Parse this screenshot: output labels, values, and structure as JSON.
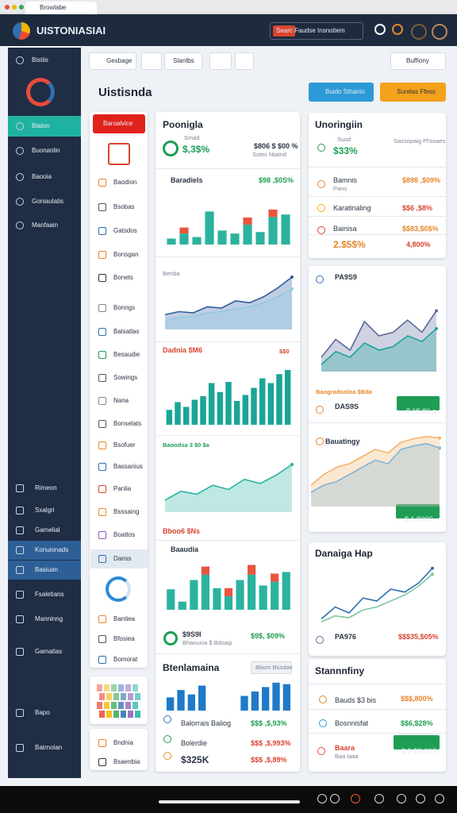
{
  "browser": {
    "tab": "Browlabe"
  },
  "header": {
    "app_name": "UISTONIASIAI",
    "search": "Searc Faudse Insnotiem"
  },
  "sidebar": {
    "top": [
      "Bistiis",
      "Biaton",
      "Buonanlin",
      "Baooia",
      "Goniaulatis",
      "Manfaain"
    ],
    "bottom": [
      "Rimeon",
      "Sxalgri",
      "Gamelial",
      "Konuionads",
      "Basiuan",
      "Fsaletians",
      "Manninng",
      "Gamatias",
      "Bapo",
      "Batrnolan"
    ]
  },
  "toolbar": {
    "buttons": [
      "Gesbage",
      "Stanlbs"
    ],
    "search": "Buffiony"
  },
  "page": {
    "title": "Uistisnda",
    "buttons": [
      "Buido Sthanio",
      "Surelas Ffess"
    ]
  },
  "list": {
    "button": "Baroalvice",
    "items": [
      "Baodion",
      "Bsobas",
      "Gatsdos",
      "Bonsgan",
      "Bonets",
      "Bonngs",
      "Balsatlas",
      "Besaudie",
      "Sowings",
      "Nana",
      "Bonselats",
      "Bsofuer",
      "Bassanius",
      "Panlia",
      "Bsssaing",
      "Boattos",
      "Danss",
      "Bantiea",
      "Bfosiea",
      "Bomorat",
      "Bndnia",
      "Bsaenbia"
    ]
  },
  "center": {
    "texts": [
      "Poonigla",
      "Smad",
      "$,3$%",
      "$806 $ $00 %",
      "Sxtes Ntatnd",
      "Baradiels",
      "$98 ,$0S%",
      "Benba",
      "Dadnia $M6",
      "$$0",
      "Baoodsa 3 $0 $a",
      "Bboo6 $Ns",
      "Baaudia",
      "$9S9I",
      "Bhaousia $ Bdsaip",
      "$9$, $09%",
      "Btenlamaina",
      "Bbom Bssdae",
      "Balorrais Baliog",
      "$$$ ,$,93%",
      "Bolerdie",
      "$$$ ,$,993%",
      "$325K",
      "$$$ ,$,89%"
    ]
  },
  "right": {
    "texts": [
      "Unoringiin",
      "Susd",
      "$33%",
      "Sassopaig Pl'osaes",
      "Bamnis",
      "Pans",
      "$898 ,$09%",
      "Karatinaling",
      "$$6 ,$8%",
      "Bainisa",
      "$$83,$0$%",
      "2.$5$%",
      "4,800%",
      "PA9S9",
      "Baogradooloa $Bda",
      "DAS9S",
      "$ 1$ 80 a",
      "Bauatingy",
      "$ 1,800S",
      "Danaiga Hap",
      "PA976",
      "$$$35,$05%",
      "Stannnfiny",
      "Bauds $3 bis",
      "$$$,800%",
      "Bosnnisfat",
      "$$6,$28%",
      "Baara",
      "Baa laaa",
      "$ 9 $S.00S"
    ]
  },
  "charts": [
    {
      "type": "stacked_bar",
      "ylim": [
        0,
        100
      ],
      "series": [
        {
          "color": "#2bb3a0",
          "values": [
            12,
            22,
            15,
            66,
            28,
            22,
            40,
            25,
            55,
            60
          ]
        },
        {
          "color": "#e8553f",
          "values": [
            0,
            12,
            0,
            0,
            0,
            0,
            14,
            0,
            15,
            0
          ]
        }
      ]
    },
    {
      "type": "area",
      "ylim": [
        0,
        100
      ],
      "series": [
        {
          "color": "#2f5d9e",
          "values": [
            25,
            30,
            28,
            38,
            36,
            48,
            45,
            55,
            70,
            88
          ]
        },
        {
          "color": "#8fcbe3",
          "values": [
            15,
            20,
            22,
            28,
            30,
            35,
            38,
            45,
            55,
            68
          ]
        }
      ]
    },
    {
      "type": "bar",
      "ylim": [
        0,
        100
      ],
      "series": [
        {
          "color": "#1aa597",
          "values": [
            25,
            38,
            30,
            42,
            48,
            70,
            55,
            72,
            40,
            50,
            62,
            78,
            70,
            85,
            92
          ]
        }
      ]
    },
    {
      "type": "area",
      "ylim": [
        0,
        100
      ],
      "series": [
        {
          "color": "#2bb3a0",
          "values": [
            20,
            35,
            30,
            45,
            38,
            55,
            48,
            62,
            80
          ]
        }
      ]
    },
    {
      "type": "stacked_bar",
      "ylim": [
        0,
        100
      ],
      "series": [
        {
          "color": "#2bb3a0",
          "values": [
            38,
            15,
            55,
            65,
            40,
            25,
            55,
            65,
            45,
            52,
            70
          ]
        },
        {
          "color": "#e8553f",
          "values": [
            0,
            0,
            0,
            15,
            0,
            15,
            0,
            18,
            0,
            15,
            0
          ]
        }
      ]
    },
    {
      "type": "bar",
      "ylim": [
        0,
        100
      ],
      "series": [
        {
          "color": "#1f7ac8",
          "values": [
            45,
            70,
            55,
            85,
            null,
            null,
            null,
            50,
            65,
            80,
            95,
            90
          ]
        }
      ]
    },
    {
      "type": "area",
      "ylim": [
        0,
        100
      ],
      "series": [
        {
          "color": "#5d6a9b",
          "values": [
            20,
            45,
            30,
            70,
            50,
            55,
            72,
            55,
            85
          ]
        },
        {
          "color": "#1aa597",
          "values": [
            10,
            28,
            20,
            40,
            30,
            35,
            50,
            42,
            60
          ]
        }
      ]
    },
    {
      "type": "area",
      "ylim": [
        0,
        100
      ],
      "series": [
        {
          "color": "#f2b36b",
          "values": [
            30,
            45,
            55,
            60,
            70,
            80,
            75,
            90,
            95,
            98,
            96
          ]
        },
        {
          "color": "#7fb5d8",
          "values": [
            20,
            30,
            35,
            45,
            55,
            65,
            60,
            80,
            85,
            88,
            82
          ]
        }
      ]
    },
    {
      "type": "line",
      "ylim": [
        0,
        100
      ],
      "series": [
        {
          "color": "#2f6fb0",
          "values": [
            10,
            30,
            20,
            45,
            40,
            60,
            55,
            70,
            95
          ]
        },
        {
          "color": "#7ec79b",
          "values": [
            5,
            15,
            12,
            25,
            30,
            40,
            50,
            65,
            85
          ]
        }
      ]
    }
  ]
}
